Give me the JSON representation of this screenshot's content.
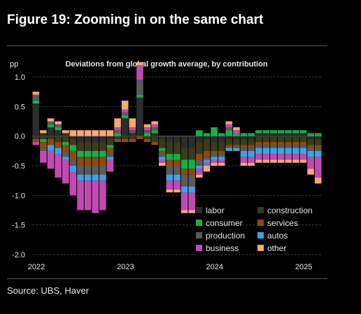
{
  "figure_title": "Figure 19: Zooming in on the same chart",
  "source": "Source: UBS, Haver",
  "colors": {
    "background": "#000000",
    "labor": "#2d2d2d",
    "construction": "#3b3b1a",
    "consumer": "#14b04a",
    "services": "#8b4a10",
    "production": "#5a5a5a",
    "autos": "#3aa3e8",
    "business": "#c04ab0",
    "other": "#f6a875"
  },
  "chart_data": {
    "type": "bar",
    "stacked": true,
    "title": "Deviations from global growth average, by contribution",
    "ylabel": "pp",
    "xlabel": "",
    "ylim": [
      -2.0,
      1.0
    ],
    "yticks": [
      "1.0",
      "0.5",
      "0.0",
      "-0.5",
      "-1.0",
      "-1.5",
      "-2.0"
    ],
    "xticks": [
      "2022",
      "2023",
      "2024",
      "2025"
    ],
    "xtick_index": [
      0,
      12,
      24,
      36
    ],
    "grid": true,
    "legend_placement": "bottom-right",
    "legend": [
      "labor",
      "construction",
      "consumer",
      "services",
      "production",
      "autos",
      "business",
      "other"
    ],
    "x": [
      "2022-01",
      "2022-02",
      "2022-03",
      "2022-04",
      "2022-05",
      "2022-06",
      "2022-07",
      "2022-08",
      "2022-09",
      "2022-10",
      "2022-11",
      "2022-12",
      "2023-01",
      "2023-02",
      "2023-03",
      "2023-04",
      "2023-05",
      "2023-06",
      "2023-07",
      "2023-08",
      "2023-09",
      "2023-10",
      "2023-11",
      "2023-12",
      "2024-01",
      "2024-02",
      "2024-03",
      "2024-04",
      "2024-05",
      "2024-06",
      "2024-07",
      "2024-08",
      "2024-09",
      "2024-10",
      "2024-11",
      "2024-12",
      "2025-01",
      "2025-02",
      "2025-03"
    ],
    "series": [
      {
        "name": "labor",
        "values": [
          0.55,
          0.05,
          0.15,
          0.1,
          0.05,
          -0.05,
          -0.1,
          -0.1,
          -0.1,
          -0.1,
          -0.05,
          0.0,
          0.3,
          0.05,
          0.65,
          0.0,
          0.05,
          -0.05,
          -0.1,
          -0.1,
          -0.2,
          -0.2,
          -0.1,
          -0.05,
          -0.1,
          -0.1,
          -0.05,
          -0.05,
          -0.05,
          -0.05,
          0.05,
          0.05,
          0.05,
          0.05,
          0.05,
          0.05,
          0.05,
          -0.05,
          -0.05
        ]
      },
      {
        "name": "construction",
        "values": [
          -0.05,
          -0.05,
          -0.05,
          -0.1,
          -0.1,
          -0.1,
          -0.15,
          -0.15,
          -0.15,
          -0.15,
          -0.1,
          -0.05,
          -0.05,
          -0.05,
          0.0,
          -0.05,
          -0.1,
          -0.15,
          -0.2,
          -0.2,
          -0.2,
          -0.2,
          -0.2,
          -0.2,
          -0.15,
          -0.15,
          -0.1,
          -0.1,
          -0.1,
          -0.1,
          -0.1,
          -0.1,
          -0.1,
          -0.1,
          -0.1,
          -0.1,
          -0.1,
          -0.1,
          -0.1
        ]
      },
      {
        "name": "consumer",
        "values": [
          0.05,
          -0.05,
          0.05,
          0.05,
          -0.05,
          -0.1,
          -0.1,
          -0.1,
          -0.1,
          -0.1,
          -0.05,
          0.05,
          0.05,
          0.0,
          0.05,
          0.05,
          0.05,
          -0.05,
          -0.1,
          -0.1,
          -0.15,
          -0.15,
          0.1,
          0.05,
          0.15,
          0.05,
          0.1,
          0.05,
          0.05,
          0.05,
          0.05,
          0.05,
          0.05,
          0.05,
          0.05,
          0.05,
          0.05,
          0.05,
          0.05
        ]
      },
      {
        "name": "services",
        "values": [
          -0.05,
          -0.1,
          -0.1,
          -0.1,
          -0.1,
          -0.15,
          -0.15,
          -0.15,
          -0.15,
          -0.15,
          -0.1,
          -0.05,
          -0.05,
          -0.05,
          -0.05,
          -0.05,
          -0.05,
          -0.05,
          -0.1,
          -0.1,
          -0.1,
          -0.1,
          -0.1,
          -0.1,
          -0.05,
          -0.05,
          -0.05,
          -0.05,
          -0.05,
          -0.05,
          -0.05,
          -0.05,
          -0.05,
          -0.05,
          -0.05,
          -0.05,
          -0.05,
          -0.05,
          -0.05
        ]
      },
      {
        "name": "production",
        "values": [
          0.1,
          -0.05,
          0.05,
          0.05,
          -0.1,
          -0.1,
          -0.15,
          -0.15,
          -0.15,
          -0.15,
          -0.05,
          0.05,
          0.05,
          0.05,
          0.25,
          0.05,
          0.05,
          -0.05,
          -0.15,
          -0.15,
          -0.2,
          -0.2,
          -0.1,
          -0.05,
          -0.05,
          -0.05,
          0.05,
          0.0,
          -0.05,
          -0.05,
          -0.05,
          -0.05,
          -0.05,
          -0.05,
          -0.05,
          -0.05,
          -0.05,
          -0.05,
          -0.05
        ]
      },
      {
        "name": "autos",
        "values": [
          0.0,
          0.0,
          -0.1,
          -0.1,
          -0.05,
          -0.1,
          -0.1,
          -0.1,
          -0.1,
          -0.1,
          -0.05,
          0.0,
          0.0,
          0.0,
          0.0,
          0.0,
          0.0,
          -0.05,
          -0.1,
          -0.1,
          -0.1,
          -0.1,
          -0.05,
          -0.05,
          -0.05,
          -0.05,
          -0.05,
          -0.05,
          -0.1,
          -0.1,
          -0.1,
          -0.1,
          -0.1,
          -0.1,
          -0.1,
          -0.1,
          -0.1,
          -0.1,
          -0.1
        ]
      },
      {
        "name": "business",
        "values": [
          -0.05,
          -0.2,
          -0.3,
          -0.4,
          -0.4,
          -0.4,
          -0.5,
          -0.5,
          -0.55,
          -0.5,
          -0.2,
          0.05,
          0.05,
          0.05,
          0.25,
          0.05,
          0.05,
          -0.05,
          -0.15,
          -0.15,
          -0.3,
          -0.3,
          -0.1,
          -0.05,
          -0.05,
          -0.05,
          0.05,
          0.05,
          -0.1,
          -0.1,
          -0.1,
          -0.1,
          -0.1,
          -0.1,
          -0.1,
          -0.1,
          -0.1,
          -0.2,
          -0.35
        ]
      },
      {
        "name": "other",
        "values": [
          0.05,
          0.05,
          0.05,
          0.05,
          0.05,
          0.1,
          0.1,
          0.1,
          0.1,
          0.1,
          0.1,
          0.15,
          0.15,
          0.15,
          0.05,
          0.05,
          0.05,
          -0.05,
          -0.05,
          -0.05,
          -0.05,
          -0.05,
          -0.05,
          -0.1,
          -0.05,
          -0.05,
          0.05,
          0.05,
          -0.05,
          -0.05,
          -0.05,
          -0.05,
          -0.05,
          -0.05,
          -0.05,
          -0.05,
          -0.05,
          -0.1,
          -0.1
        ]
      }
    ]
  }
}
